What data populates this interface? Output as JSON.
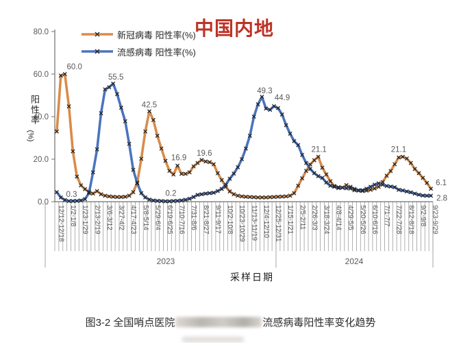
{
  "title": "中国内地",
  "title_color": "#BE3226",
  "y_axis": {
    "title": "阳性率",
    "unit": "(%)",
    "ticks": [
      "0.0",
      "20.0",
      "40.0",
      "60.0",
      "80.0"
    ]
  },
  "x_axis": {
    "title": "采样日期",
    "year_groups": [
      {
        "label": "2023"
      },
      {
        "label": "2024"
      }
    ]
  },
  "caption": {
    "prefix": "图3-2 全国哨点医院",
    "suffix": "流感病毒阳性率变化趋势",
    "redacted": true
  },
  "chart_data": {
    "type": "line",
    "x_count": 94,
    "ylim": [
      0,
      80
    ],
    "grid": false,
    "legend_position": "top-left",
    "tick_labels": [
      {
        "i": 1,
        "label": "12/12-12/18"
      },
      {
        "i": 4,
        "label": "1/2-1/8"
      },
      {
        "i": 7,
        "label": "1/23-1/29"
      },
      {
        "i": 10,
        "label": "2/13-2/19"
      },
      {
        "i": 13,
        "label": "3/6-3/12"
      },
      {
        "i": 16,
        "label": "3/27-4/2"
      },
      {
        "i": 19,
        "label": "4/17-4/23"
      },
      {
        "i": 22,
        "label": "5/8-5/14"
      },
      {
        "i": 25,
        "label": "5/29-6/4"
      },
      {
        "i": 28,
        "label": "6/19-6/25"
      },
      {
        "i": 31,
        "label": "7/10-7/16"
      },
      {
        "i": 34,
        "label": "7/31-8/6"
      },
      {
        "i": 37,
        "label": "8/21-8/27"
      },
      {
        "i": 40,
        "label": "9/11-9/17"
      },
      {
        "i": 43,
        "label": "10/2-10/8"
      },
      {
        "i": 46,
        "label": "10/23-10/29"
      },
      {
        "i": 49,
        "label": "11/13-11/19"
      },
      {
        "i": 52,
        "label": "12/4-12/10"
      },
      {
        "i": 55,
        "label": "12/25-12/31"
      },
      {
        "i": 58,
        "label": "1/15-1/21"
      },
      {
        "i": 61,
        "label": "2/5-2/11"
      },
      {
        "i": 64,
        "label": "2/26-3/3"
      },
      {
        "i": 67,
        "label": "3/18-3/24"
      },
      {
        "i": 70,
        "label": "4/8-4/14"
      },
      {
        "i": 73,
        "label": "4/29-5/5"
      },
      {
        "i": 76,
        "label": "5/20-5/26"
      },
      {
        "i": 79,
        "label": "6/10-6/16"
      },
      {
        "i": 82,
        "label": "7/1-7/7"
      },
      {
        "i": 85,
        "label": "7/22-7/28"
      },
      {
        "i": 88,
        "label": "8/12-8/18"
      },
      {
        "i": 91,
        "label": "9/2-9/8"
      },
      {
        "i": 94,
        "label": "9/23-9/29"
      }
    ],
    "year_split_index": 55,
    "series": [
      {
        "name": "新冠病毒 阳性率(%)",
        "color": "#D98C48",
        "values": [
          33,
          59.3,
          60,
          44.8,
          23.7,
          11.8,
          7.7,
          5.9,
          4.6,
          3.8,
          5,
          3.5,
          2.8,
          2.5,
          2.3,
          2.2,
          2.2,
          2.3,
          2.8,
          4.5,
          9,
          20.2,
          33,
          42.5,
          38.4,
          31,
          25,
          19.2,
          14.5,
          12.8,
          16.9,
          13.1,
          13.1,
          13.8,
          16.6,
          18.2,
          19.6,
          18.9,
          18.6,
          17.6,
          13.4,
          10.2,
          7,
          4.8,
          3.5,
          2.8,
          2.5,
          2.3,
          2.2,
          2.1,
          2,
          2,
          2,
          2.1,
          2.2,
          2.3,
          2.4,
          2.5,
          2.8,
          4,
          7.5,
          11,
          14.5,
          17.5,
          19.5,
          21.1,
          16,
          12.8,
          9.6,
          7.4,
          6.4,
          6.6,
          7.8,
          6.2,
          5.4,
          5.2,
          5,
          5.2,
          5.6,
          6.2,
          7,
          9.2,
          12.2,
          14.4,
          17.6,
          20.8,
          21.1,
          20.3,
          18.2,
          15.4,
          13.4,
          11.2,
          8.8,
          6.1
        ],
        "point_labels": [
          {
            "i": 3,
            "text": "60.0",
            "dx": 14,
            "dy": -7
          },
          {
            "i": 24,
            "text": "42.5",
            "dx": 0,
            "dy": -6
          },
          {
            "i": 31,
            "text": "16.9",
            "dx": 2,
            "dy": -8
          },
          {
            "i": 37,
            "text": "19.6",
            "dx": 4,
            "dy": -6
          },
          {
            "i": 66,
            "text": "21.1",
            "dx": 1,
            "dy": -7
          },
          {
            "i": 87,
            "text": "21.1",
            "dx": -6,
            "dy": -7
          },
          {
            "i": 94,
            "text": "6.1",
            "dx": 15,
            "dy": -5
          }
        ]
      },
      {
        "name": "流感病毒 阳性率(%)",
        "color": "#4A74BE",
        "values": [
          4.5,
          2,
          0.8,
          0.3,
          0.3,
          0.4,
          0.6,
          1.2,
          4,
          13.8,
          24.6,
          41.6,
          52.8,
          53.8,
          55.5,
          50.6,
          44.2,
          37.8,
          27.2,
          15,
          8.6,
          4,
          2,
          1,
          0.6,
          0.4,
          0.3,
          0.2,
          0.2,
          0.3,
          0.4,
          0.6,
          0.9,
          1.4,
          2.2,
          3.2,
          3.5,
          3.8,
          4,
          4.2,
          5,
          6,
          8,
          10.8,
          13.2,
          16.2,
          20,
          25,
          31,
          40,
          45.8,
          49.3,
          43.8,
          43.2,
          44.9,
          44,
          41,
          36,
          32,
          28.5,
          26.6,
          22,
          18.2,
          15.4,
          13.4,
          12,
          11.2,
          9,
          7.5,
          7,
          6.8,
          6.6,
          6.3,
          7,
          6,
          5.4,
          5.4,
          6.1,
          7,
          8,
          8.6,
          8,
          7.4,
          7.1,
          6.8,
          5.6,
          5.3,
          4.8,
          4.4,
          3.8,
          3.3,
          2.9,
          2.8,
          2.8
        ],
        "point_labels": [
          {
            "i": 4,
            "text": "0.3",
            "dx": 4,
            "dy": -6
          },
          {
            "i": 15,
            "text": "55.5",
            "dx": 4,
            "dy": -6
          },
          {
            "i": 28,
            "text": "0.2",
            "dx": 8,
            "dy": -8
          },
          {
            "i": 52,
            "text": "49.3",
            "dx": 4,
            "dy": -5
          },
          {
            "i": 55,
            "text": "44.9",
            "dx": 12,
            "dy": -9
          },
          {
            "i": 94,
            "text": "2.8",
            "dx": 16,
            "dy": 7
          }
        ]
      }
    ]
  }
}
